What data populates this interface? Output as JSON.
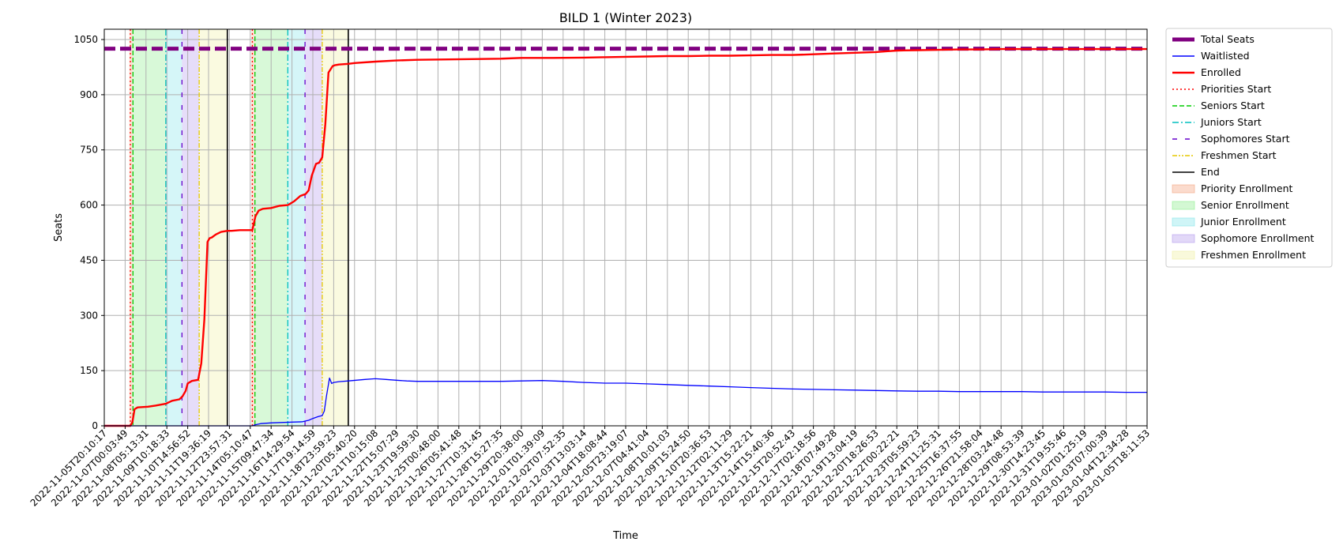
{
  "chart_data": {
    "type": "line",
    "title": "BILD 1 (Winter 2023)",
    "xlabel": "Time",
    "ylabel": "Seats",
    "ylim": [
      0,
      1078
    ],
    "yticks": [
      0,
      150,
      300,
      450,
      600,
      750,
      900,
      1050
    ],
    "xlim": [
      0,
      100
    ],
    "grid": true,
    "legend_position": "outside-right",
    "xtick_labels": [
      "2022-11-05T20:10:17",
      "2022-11-07T00:03:49",
      "2022-11-08T05:13:31",
      "2022-11-09T10:18:33",
      "2022-11-10T14:56:52",
      "2022-11-11T19:36:19",
      "2022-11-12T23:57:31",
      "2022-11-14T05:10:47",
      "2022-11-15T09:47:34",
      "2022-11-16T14:29:54",
      "2022-11-17T19:14:59",
      "2022-11-18T23:59:23",
      "2022-11-20T05:40:20",
      "2022-11-21T10:15:08",
      "2022-11-22T15:07:29",
      "2022-11-23T19:59:30",
      "2022-11-25T00:48:00",
      "2022-11-26T05:41:48",
      "2022-11-27T10:31:45",
      "2022-11-28T15:27:35",
      "2022-11-29T20:38:00",
      "2022-12-01T01:39:09",
      "2022-12-02T07:52:35",
      "2022-12-03T13:03:14",
      "2022-12-04T18:08:44",
      "2022-12-05T23:19:07",
      "2022-12-07T04:41:04",
      "2022-12-08T10:01:03",
      "2022-12-09T15:24:50",
      "2022-12-10T20:36:53",
      "2022-12-12T02:11:29",
      "2022-12-13T15:22:21",
      "2022-12-14T15:40:36",
      "2022-12-15T20:52:43",
      "2022-12-17T02:18:56",
      "2022-12-18T07:49:28",
      "2022-12-19T13:04:19",
      "2022-12-20T18:26:53",
      "2022-12-22T00:22:21",
      "2022-12-23T05:59:23",
      "2022-12-24T11:25:31",
      "2022-12-25T16:37:55",
      "2022-12-26T21:58:04",
      "2022-12-28T03:24:48",
      "2022-12-29T08:53:39",
      "2022-12-30T14:23:45",
      "2022-12-31T19:55:46",
      "2023-01-02T01:25:19",
      "2023-01-03T07:00:39",
      "2023-01-04T12:34:28",
      "2023-01-05T18:11:53"
    ],
    "legend": [
      {
        "label": "Total Seats",
        "color": "#800080",
        "style": "dashed-thick",
        "key": "total"
      },
      {
        "label": "Waitlisted",
        "color": "#0000ff",
        "style": "line",
        "key": "waitlisted"
      },
      {
        "label": "Enrolled",
        "color": "#ff0000",
        "style": "line-thick",
        "key": "enrolled"
      },
      {
        "label": "Priorities Start",
        "color": "#ff0000",
        "style": "dotted",
        "key": "priorities_start"
      },
      {
        "label": "Seniors Start",
        "color": "#00cc00",
        "style": "dashed",
        "key": "seniors_start"
      },
      {
        "label": "Juniors Start",
        "color": "#00bfbf",
        "style": "dashdot",
        "key": "juniors_start"
      },
      {
        "label": "Sophomores Start",
        "color": "#6600cc",
        "style": "loosedash",
        "key": "sophomores_start"
      },
      {
        "label": "Freshmen Start",
        "color": "#e6c800",
        "style": "dashdotdot",
        "key": "freshmen_start"
      },
      {
        "label": "End",
        "color": "#000000",
        "style": "line",
        "key": "end"
      },
      {
        "label": "Priority Enrollment",
        "color": "#f4a582",
        "style": "patch",
        "key": "priority_enroll"
      },
      {
        "label": "Senior Enrollment",
        "color": "#90ee90",
        "style": "patch",
        "key": "senior_enroll"
      },
      {
        "label": "Junior Enrollment",
        "color": "#87e5ea",
        "style": "patch",
        "key": "junior_enroll"
      },
      {
        "label": "Sophomore Enrollment",
        "color": "#b69ded",
        "style": "patch",
        "key": "sophomore_enroll"
      },
      {
        "label": "Freshmen Enrollment",
        "color": "#f0f0a6",
        "style": "patch",
        "key": "freshmen_enroll"
      }
    ],
    "total_seats": 1025,
    "phases": [
      {
        "name": "Priority Enrollment",
        "x0": 2.4,
        "x1": 2.75,
        "color": "#f4a582"
      },
      {
        "name": "Senior Enrollment",
        "x0": 2.75,
        "x1": 5.9,
        "color": "#90ee90"
      },
      {
        "name": "Junior Enrollment",
        "x0": 5.9,
        "x1": 7.45,
        "color": "#87e5ea"
      },
      {
        "name": "Sophomore Enrollment",
        "x0": 7.45,
        "x1": 9.1,
        "color": "#b69ded"
      },
      {
        "name": "Freshmen Enrollment",
        "x0": 9.1,
        "x1": 11.8,
        "color": "#f0f0a6"
      },
      {
        "name": "Priority Enrollment",
        "x0": 14.1,
        "x1": 14.45,
        "color": "#f4a582"
      },
      {
        "name": "Senior Enrollment",
        "x0": 14.45,
        "x1": 17.6,
        "color": "#90ee90"
      },
      {
        "name": "Junior Enrollment",
        "x0": 17.6,
        "x1": 19.25,
        "color": "#87e5ea"
      },
      {
        "name": "Sophomore Enrollment",
        "x0": 19.25,
        "x1": 20.9,
        "color": "#b69ded"
      },
      {
        "name": "Freshmen Enrollment",
        "x0": 20.9,
        "x1": 23.4,
        "color": "#f0f0a6"
      }
    ],
    "markers": [
      {
        "key": "priorities_start",
        "x": 2.5
      },
      {
        "key": "seniors_start",
        "x": 2.75
      },
      {
        "key": "juniors_start",
        "x": 5.9
      },
      {
        "key": "sophomores_start",
        "x": 7.45
      },
      {
        "key": "freshmen_start",
        "x": 9.1
      },
      {
        "key": "end",
        "x": 11.8
      },
      {
        "key": "priorities_start",
        "x": 14.2
      },
      {
        "key": "seniors_start",
        "x": 14.45
      },
      {
        "key": "juniors_start",
        "x": 17.6
      },
      {
        "key": "sophomores_start",
        "x": 19.25
      },
      {
        "key": "freshmen_start",
        "x": 20.9
      },
      {
        "key": "end",
        "x": 23.4
      }
    ],
    "series": [
      {
        "name": "Enrolled",
        "key": "enrolled",
        "x": [
          0,
          2.5,
          2.7,
          2.9,
          3.2,
          4.2,
          4.9,
          5.9,
          6.5,
          7.2,
          7.5,
          7.8,
          8.0,
          8.4,
          9.0,
          9.3,
          9.6,
          9.9,
          10.1,
          10.3,
          10.7,
          11.2,
          11.8,
          12.2,
          13.0,
          14.2,
          14.5,
          14.8,
          15.2,
          16.0,
          16.8,
          17.6,
          18.2,
          18.8,
          19.3,
          19.6,
          19.9,
          20.3,
          20.6,
          20.9,
          21.2,
          21.5,
          21.9,
          22.1,
          22.5,
          23.4,
          24,
          26,
          28,
          30,
          33,
          36,
          38,
          40,
          43,
          46,
          48,
          50,
          52,
          54,
          56,
          58,
          60,
          62,
          64,
          66,
          68,
          70,
          72,
          74,
          75,
          76,
          78,
          80,
          82,
          84,
          86,
          88,
          90,
          92,
          94,
          96,
          98,
          100
        ],
        "values": [
          0,
          0,
          10,
          45,
          50,
          52,
          55,
          60,
          68,
          72,
          80,
          95,
          115,
          122,
          125,
          170,
          290,
          500,
          510,
          512,
          520,
          527,
          530,
          530,
          532,
          532,
          570,
          585,
          590,
          592,
          598,
          600,
          610,
          625,
          630,
          640,
          680,
          712,
          715,
          730,
          820,
          960,
          978,
          980,
          982,
          984,
          986,
          990,
          993,
          995,
          996,
          997,
          998,
          1000,
          1000,
          1001,
          1002,
          1003,
          1004,
          1005,
          1005,
          1006,
          1006,
          1007,
          1008,
          1008,
          1010,
          1012,
          1014,
          1016,
          1018,
          1020,
          1021,
          1022,
          1023,
          1023,
          1024,
          1024,
          1024,
          1024,
          1024,
          1024,
          1024,
          1024
        ]
      },
      {
        "name": "Waitlisted",
        "key": "waitlisted",
        "x": [
          0,
          14.2,
          14.5,
          15.0,
          16.0,
          17.0,
          18.0,
          19.0,
          19.3,
          19.6,
          20.0,
          20.5,
          20.9,
          21.1,
          21.3,
          21.6,
          21.8,
          22.0,
          22.5,
          23.4,
          25,
          26,
          27,
          28,
          29,
          30,
          33,
          36,
          38,
          40,
          42,
          44,
          46,
          48,
          50,
          52,
          54,
          56,
          58,
          60,
          62,
          64,
          66,
          68,
          70,
          72,
          74,
          76,
          78,
          80,
          82,
          84,
          86,
          88,
          90,
          92,
          94,
          96,
          98,
          100
        ],
        "values": [
          0,
          0,
          3,
          6,
          8,
          9,
          10,
          11,
          13,
          15,
          20,
          25,
          28,
          40,
          80,
          130,
          115,
          118,
          120,
          122,
          126,
          128,
          126,
          124,
          122,
          121,
          121,
          121,
          121,
          122,
          123,
          121,
          118,
          116,
          116,
          114,
          112,
          110,
          108,
          106,
          104,
          102,
          100,
          99,
          98,
          97,
          96,
          95,
          94,
          94,
          93,
          93,
          93,
          93,
          92,
          92,
          92,
          92,
          91,
          91
        ]
      }
    ]
  }
}
